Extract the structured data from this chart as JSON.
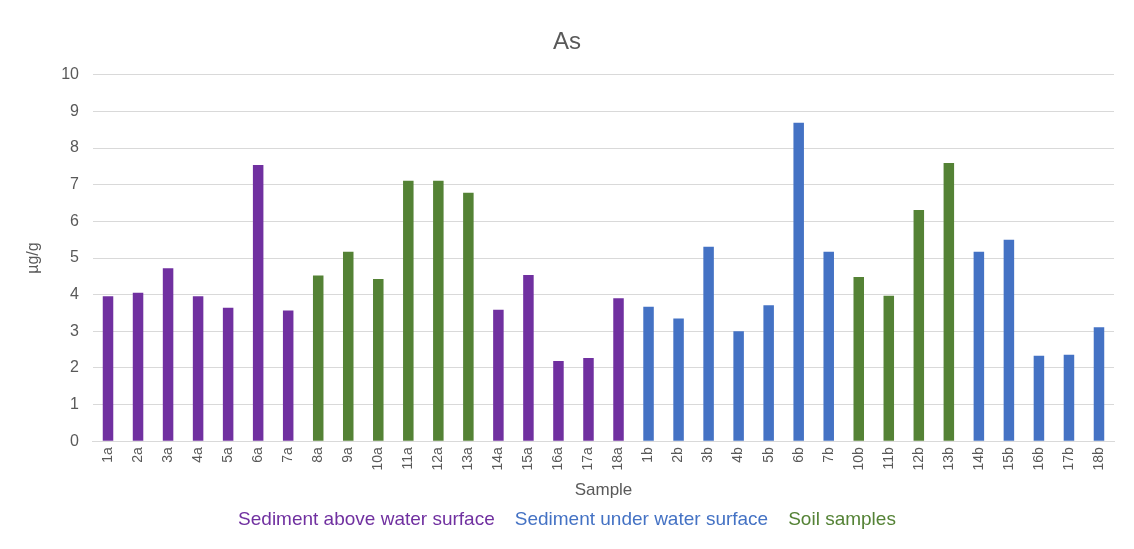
{
  "chart_data": {
    "type": "bar",
    "title": "As",
    "xlabel": "Sample",
    "ylabel": "µg/g",
    "categories": [
      "1a",
      "2a",
      "3a",
      "4a",
      "5a",
      "6a",
      "7a",
      "8a",
      "9a",
      "10a",
      "11a",
      "12a",
      "13a",
      "14a",
      "15a",
      "16a",
      "17a",
      "18a",
      "1b",
      "2b",
      "3b",
      "4b",
      "5b",
      "6b",
      "7b",
      "10b",
      "11b",
      "12b",
      "13b",
      "14b",
      "15b",
      "16b",
      "17b",
      "18b"
    ],
    "series": [
      {
        "name": "Sediment above water surface",
        "color": "#7030a0",
        "values": [
          3.96,
          4.05,
          4.72,
          3.96,
          3.64,
          7.54,
          3.57,
          null,
          null,
          null,
          null,
          null,
          null,
          3.59,
          4.54,
          2.19,
          2.27,
          3.9,
          null,
          null,
          null,
          null,
          null,
          null,
          null,
          null,
          null,
          null,
          null,
          null,
          null,
          null,
          null,
          null
        ]
      },
      {
        "name": "Sediment under water surface",
        "color": "#4472c4",
        "values": [
          null,
          null,
          null,
          null,
          null,
          null,
          null,
          null,
          null,
          null,
          null,
          null,
          null,
          null,
          null,
          null,
          null,
          null,
          3.67,
          3.35,
          5.31,
          3.0,
          3.71,
          8.69,
          5.17,
          null,
          null,
          null,
          null,
          5.17,
          5.5,
          2.33,
          2.36,
          3.11
        ]
      },
      {
        "name": "Soil samples",
        "color": "#548235",
        "values": [
          null,
          null,
          null,
          null,
          null,
          null,
          null,
          4.52,
          5.17,
          4.43,
          7.11,
          7.11,
          6.78,
          null,
          null,
          null,
          null,
          null,
          null,
          null,
          null,
          null,
          null,
          null,
          null,
          4.48,
          3.97,
          6.31,
          7.59,
          null,
          null,
          null,
          null,
          null
        ]
      }
    ],
    "ylim": [
      0,
      10
    ],
    "yticks": [
      0,
      1,
      2,
      3,
      4,
      5,
      6,
      7,
      8,
      9,
      10
    ],
    "grid": "y",
    "legend": "bottom"
  }
}
